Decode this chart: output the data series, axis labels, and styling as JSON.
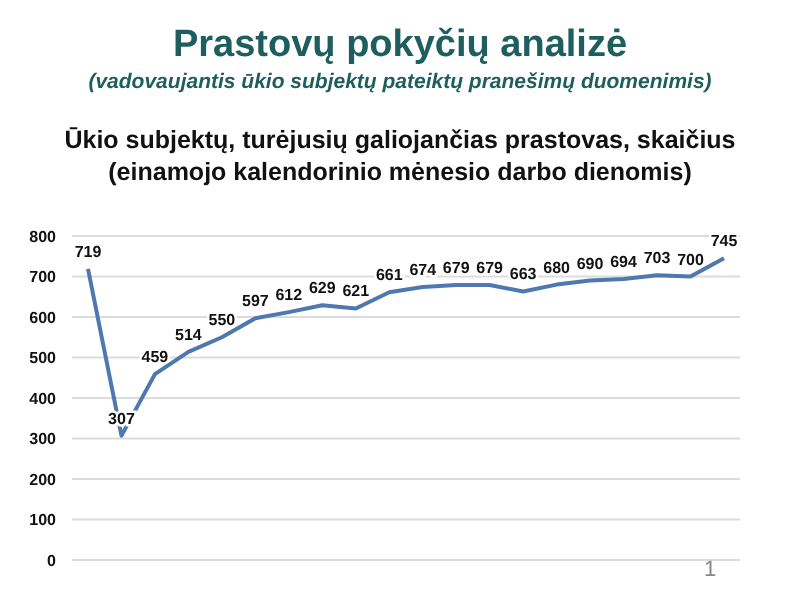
{
  "chart_data": {
    "type": "line",
    "title": "Prastovų pokyčių analizė",
    "subtitle": "(vadovaujantis ūkio subjektų pateiktų pranešimų duomenimis)",
    "ylabel": null,
    "annotations": [
      "Ūkio subjektų, turėjusių galiojančias prastovas, skaičius (einamojo kalendorinio mėnesio darbo dienomis)",
      "1"
    ],
    "categories": [
      null,
      null,
      null,
      null,
      null,
      null,
      null,
      null,
      null,
      null,
      null,
      null,
      null,
      null,
      null,
      null,
      null,
      null,
      null,
      null
    ],
    "series": [
      {
        "color": "#4f78b0",
        "values": [
          719,
          307,
          459,
          514,
          550,
          597,
          612,
          629,
          621,
          661,
          674,
          679,
          679,
          663,
          680,
          690,
          694,
          703,
          700,
          745
        ]
      }
    ],
    "ylim": [
      0,
      800
    ],
    "yticks": [
      0,
      100,
      200,
      300,
      400,
      500,
      600,
      700,
      800
    ],
    "grid": "y",
    "data_labels": true,
    "marker": "none",
    "line_style": "solid",
    "legend": false
  }
}
